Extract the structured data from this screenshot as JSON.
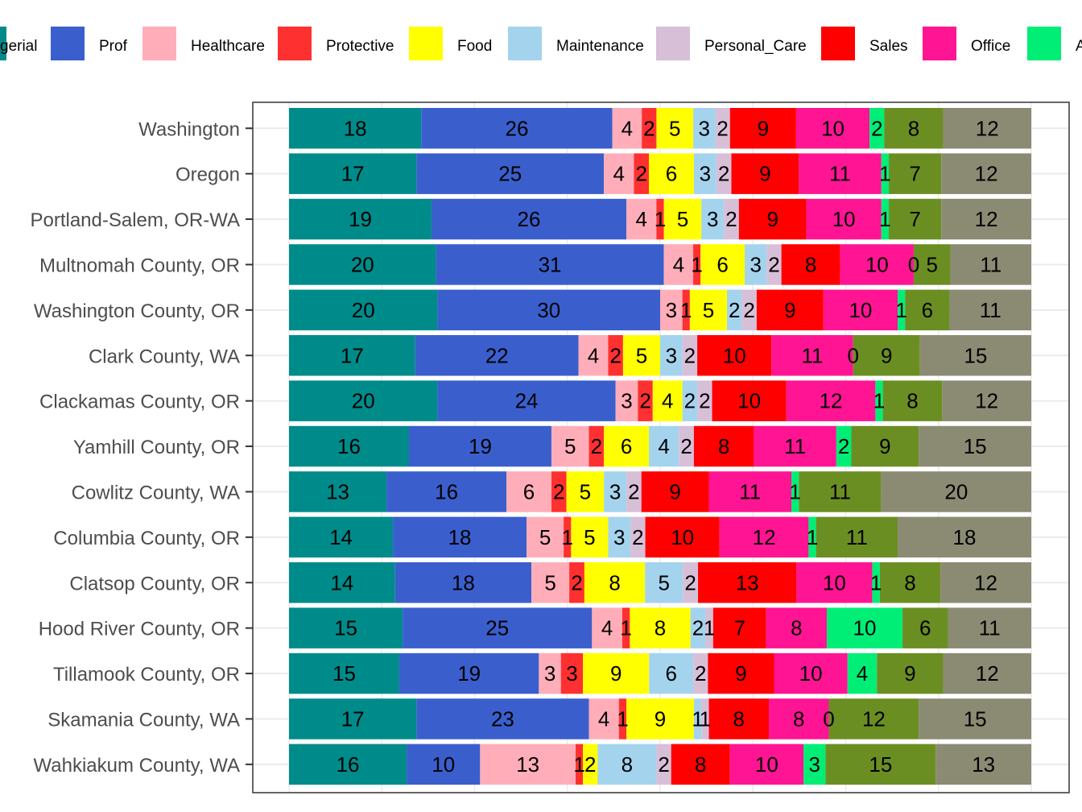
{
  "chart_data": {
    "type": "bar",
    "orientation": "horizontal",
    "stacked": true,
    "normalized": true,
    "grid": true,
    "legend_position": "top",
    "legend_items": [
      {
        "label": "gerial",
        "color": "#008B8B"
      },
      {
        "label": "Prof",
        "color": "#3A5FCD"
      },
      {
        "label": "Healthcare",
        "color": "#FFAEB9"
      },
      {
        "label": "Protective",
        "color": "#FF3030"
      },
      {
        "label": "Food",
        "color": "#FFFF00"
      },
      {
        "label": "Maintenance",
        "color": "#A4D3EE"
      },
      {
        "label": "Personal_Care",
        "color": "#D8BFD8"
      },
      {
        "label": "Sales",
        "color": "#FF0000"
      },
      {
        "label": "Office",
        "color": "#FF1493"
      },
      {
        "label": "A",
        "color": "#00EE76"
      }
    ],
    "series": [
      {
        "color": "#008B8B",
        "values": [
          18,
          17,
          19,
          20,
          20,
          17,
          20,
          16,
          13,
          14,
          14,
          15,
          15,
          17,
          16
        ]
      },
      {
        "name": "Prof",
        "color": "#3A5FCD",
        "values": [
          26,
          25,
          26,
          31,
          30,
          22,
          24,
          19,
          16,
          18,
          18,
          25,
          19,
          23,
          10
        ]
      },
      {
        "name": "Healthcare",
        "color": "#FFAEB9",
        "values": [
          4,
          4,
          4,
          4,
          3,
          4,
          3,
          5,
          6,
          5,
          5,
          4,
          3,
          4,
          13
        ]
      },
      {
        "name": "Protective",
        "color": "#FF3030",
        "values": [
          2,
          2,
          1,
          1,
          1,
          2,
          2,
          2,
          2,
          1,
          2,
          1,
          3,
          1,
          1
        ]
      },
      {
        "name": "Food",
        "color": "#FFFF00",
        "values": [
          5,
          6,
          5,
          6,
          5,
          5,
          4,
          6,
          5,
          5,
          8,
          8,
          9,
          9,
          2
        ]
      },
      {
        "name": "Maintenance",
        "color": "#A4D3EE",
        "values": [
          3,
          3,
          3,
          3,
          2,
          3,
          2,
          4,
          3,
          3,
          5,
          2,
          6,
          1,
          8
        ]
      },
      {
        "name": "Personal_Care",
        "color": "#D8BFD8",
        "values": [
          2,
          2,
          2,
          2,
          2,
          2,
          2,
          2,
          2,
          2,
          2,
          1,
          2,
          1,
          2
        ]
      },
      {
        "name": "Sales",
        "color": "#FF0000",
        "values": [
          9,
          9,
          9,
          8,
          9,
          10,
          10,
          8,
          9,
          10,
          13,
          7,
          9,
          8,
          8
        ]
      },
      {
        "name": "Office",
        "color": "#FF1493",
        "values": [
          10,
          11,
          10,
          10,
          10,
          11,
          12,
          11,
          11,
          12,
          10,
          8,
          10,
          8,
          10
        ]
      },
      {
        "color": "#00EE76",
        "values": [
          2,
          1,
          1,
          0,
          1,
          0,
          1,
          2,
          1,
          1,
          1,
          10,
          4,
          0,
          3
        ]
      },
      {
        "color": "#6B8E23",
        "values": [
          8,
          7,
          7,
          5,
          6,
          9,
          8,
          9,
          11,
          11,
          8,
          6,
          9,
          12,
          15
        ]
      },
      {
        "color": "#8B8B74",
        "values": [
          12,
          12,
          12,
          11,
          11,
          15,
          12,
          15,
          20,
          18,
          12,
          11,
          12,
          15,
          13
        ]
      }
    ],
    "categories": [
      "Washington",
      "Oregon",
      "Portland-Salem, OR-WA",
      "Multnomah County, OR",
      "Washington County, OR",
      "Clark County, WA",
      "Clackamas County, OR",
      "Yamhill County, OR",
      "Cowlitz County, WA",
      "Columbia County, OR",
      "Clatsop County, OR",
      "Hood River County, OR",
      "Tillamook County, OR",
      "Skamania County, WA",
      "Wahkiakum County, WA"
    ]
  }
}
